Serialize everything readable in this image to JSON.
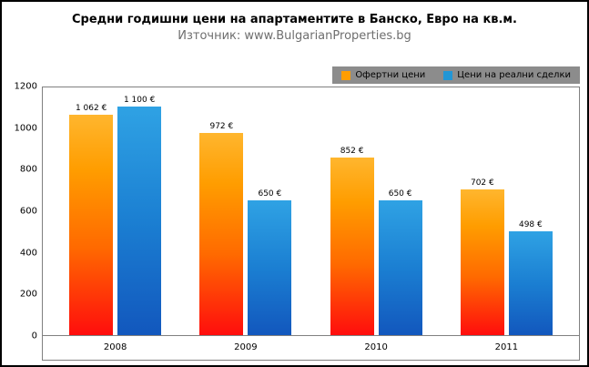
{
  "chart_data": {
    "type": "bar",
    "title": "Средни годишни цени на апартаментите в Банско, Евро на кв.м.",
    "subtitle": "Източник: www.BulgarianProperties.bg",
    "categories": [
      "2008",
      "2009",
      "2010",
      "2011"
    ],
    "series": [
      {
        "name": "Офертни цени",
        "color": "#ff9d00",
        "values": [
          1062,
          972,
          852,
          702
        ],
        "labels": [
          "1 062 €",
          "972 €",
          "852 €",
          "702 €"
        ]
      },
      {
        "name": "Цени на реални сделки",
        "color": "#2196d6",
        "values": [
          1100,
          650,
          650,
          498
        ],
        "labels": [
          "1 100 €",
          "650 €",
          "650 €",
          "498 €"
        ]
      }
    ],
    "ylim": [
      0,
      1200
    ],
    "yticks": [
      0,
      200,
      400,
      600,
      800,
      1000,
      1200
    ],
    "ytick_labels": [
      "0",
      "200",
      "400",
      "600",
      "800",
      "1000",
      "1200"
    ],
    "legend_position": "top-right",
    "grid": false
  }
}
